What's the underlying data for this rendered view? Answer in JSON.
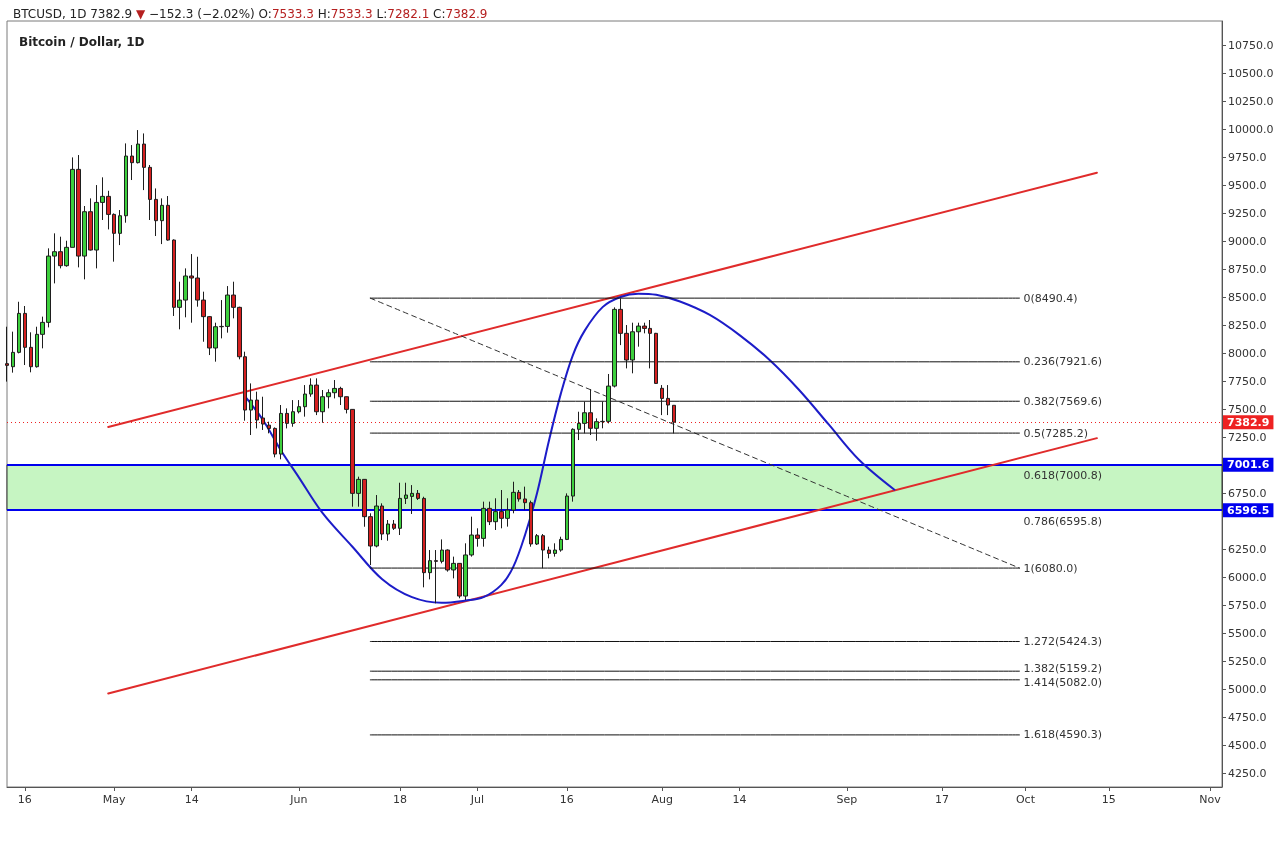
{
  "chart_data": {
    "type": "candlestick",
    "title": "BTCUSD, 1D 7382.9 ▼ −152.3 (−2.02%) O:7533.3 H:7533.3 L:7282.1 C:7382.9",
    "subtitle": "Bitcoin / Dollar, 1D",
    "x": [
      "--04-13",
      "--04-14",
      "--04-15",
      "--04-16",
      "--04-17",
      "--04-18",
      "--04-19",
      "--04-20",
      "--04-21",
      "--04-22",
      "--04-23",
      "--04-24",
      "--04-25",
      "--04-26",
      "--04-27",
      "--04-28",
      "--04-29",
      "--04-30",
      "--05-01",
      "--05-02",
      "--05-03",
      "--05-04",
      "--05-05",
      "--05-06",
      "--05-07",
      "--05-08",
      "--05-09",
      "--05-10",
      "--05-11",
      "--05-12",
      "--05-13",
      "--05-14",
      "--05-15",
      "--05-16",
      "--05-17",
      "--05-18",
      "--05-19",
      "--05-20",
      "--05-21",
      "--05-22",
      "--05-23",
      "--05-24",
      "--05-25",
      "--05-26",
      "--05-27",
      "--05-28",
      "--05-29",
      "--05-30",
      "--05-31",
      "--06-01",
      "--06-02",
      "--06-03",
      "--06-04",
      "--06-05",
      "--06-06",
      "--06-07",
      "--06-08",
      "--06-09",
      "--06-10",
      "--06-11",
      "--06-12",
      "--06-13",
      "--06-14",
      "--06-15",
      "--06-16",
      "--06-17",
      "--06-18",
      "--06-19",
      "--06-20",
      "--06-21",
      "--06-22",
      "--06-23",
      "--06-24",
      "--06-25",
      "--06-26",
      "--06-27",
      "--06-28",
      "--06-29",
      "--06-30",
      "--07-01",
      "--07-02",
      "--07-03",
      "--07-04",
      "--07-05",
      "--07-06",
      "--07-07",
      "--07-08",
      "--07-09",
      "--07-10",
      "--07-11",
      "--07-12",
      "--07-13",
      "--07-14",
      "--07-15",
      "--07-16",
      "--07-17",
      "--07-18",
      "--07-19",
      "--07-20",
      "--07-21",
      "--07-22",
      "--07-23",
      "--07-24",
      "--07-25",
      "--07-26",
      "--07-27",
      "--07-28",
      "--07-29",
      "--07-30",
      "--07-31",
      "--08-01",
      "--08-02",
      "--08-03"
    ],
    "ohlc": [
      [
        7905,
        8235,
        7745,
        7890
      ],
      [
        7878,
        8191,
        7825,
        8006
      ],
      [
        8006,
        8458,
        7997,
        8354
      ],
      [
        8354,
        8420,
        7893,
        8051
      ],
      [
        8051,
        8185,
        7828,
        7878
      ],
      [
        7878,
        8235,
        7870,
        8167
      ],
      [
        8167,
        8325,
        8042,
        8274
      ],
      [
        8274,
        8935,
        8229,
        8866
      ],
      [
        8866,
        9069,
        8622,
        8905
      ],
      [
        8905,
        9039,
        8756,
        8780
      ],
      [
        8780,
        9003,
        8771,
        8944
      ],
      [
        8944,
        9747,
        8944,
        9640
      ],
      [
        9640,
        9768,
        8765,
        8866
      ],
      [
        8866,
        9313,
        8658,
        9262
      ],
      [
        9262,
        9381,
        8915,
        8920
      ],
      [
        8920,
        9500,
        8756,
        9345
      ],
      [
        9345,
        9569,
        9188,
        9399
      ],
      [
        9399,
        9449,
        9104,
        9238
      ],
      [
        9238,
        9247,
        8816,
        9069
      ],
      [
        9069,
        9277,
        8964,
        9226
      ],
      [
        9226,
        9872,
        9164,
        9759
      ],
      [
        9759,
        9857,
        9545,
        9700
      ],
      [
        9700,
        9991,
        9693,
        9866
      ],
      [
        9866,
        9961,
        9455,
        9658
      ],
      [
        9658,
        9679,
        9188,
        9372
      ],
      [
        9372,
        9470,
        9045,
        9182
      ],
      [
        9182,
        9381,
        8973,
        9319
      ],
      [
        9319,
        9402,
        9003,
        9009
      ],
      [
        9009,
        9015,
        8331,
        8408
      ],
      [
        8408,
        8637,
        8212,
        8473
      ],
      [
        8473,
        8756,
        8319,
        8688
      ],
      [
        8688,
        8884,
        8271,
        8670
      ],
      [
        8670,
        8860,
        8414,
        8473
      ],
      [
        8473,
        8548,
        8101,
        8325
      ],
      [
        8325,
        8331,
        7982,
        8045
      ],
      [
        8045,
        8271,
        7923,
        8235
      ],
      [
        8235,
        8473,
        8131,
        8238
      ],
      [
        8238,
        8598,
        8182,
        8518
      ],
      [
        8518,
        8637,
        8310,
        8408
      ],
      [
        8408,
        8414,
        7944,
        7967
      ],
      [
        7967,
        8012,
        7396,
        7491
      ],
      [
        7491,
        7729,
        7268,
        7580
      ],
      [
        7580,
        7655,
        7327,
        7402
      ],
      [
        7420,
        7610,
        7313,
        7366
      ],
      [
        7356,
        7387,
        7283,
        7327
      ],
      [
        7327,
        7336,
        7069,
        7098
      ],
      [
        7098,
        7536,
        7051,
        7461
      ],
      [
        7461,
        7506,
        7327,
        7372
      ],
      [
        7372,
        7580,
        7342,
        7476
      ],
      [
        7476,
        7580,
        7461,
        7521
      ],
      [
        7521,
        7714,
        7432,
        7634
      ],
      [
        7634,
        7774,
        7610,
        7714
      ],
      [
        7714,
        7774,
        7446,
        7476
      ],
      [
        7476,
        7670,
        7378,
        7610
      ],
      [
        7610,
        7676,
        7506,
        7646
      ],
      [
        7646,
        7759,
        7595,
        7684
      ],
      [
        7684,
        7699,
        7536,
        7610
      ],
      [
        7610,
        7612,
        7461,
        7497
      ],
      [
        7497,
        7500,
        6628,
        6747
      ],
      [
        6747,
        6896,
        6628,
        6872
      ],
      [
        6872,
        6875,
        6449,
        6539
      ],
      [
        6539,
        6569,
        6107,
        6277
      ],
      [
        6277,
        6732,
        6265,
        6634
      ],
      [
        6634,
        6658,
        6330,
        6384
      ],
      [
        6384,
        6509,
        6324,
        6473
      ],
      [
        6473,
        6509,
        6420,
        6435
      ],
      [
        6435,
        6842,
        6375,
        6702
      ],
      [
        6702,
        6842,
        6652,
        6732
      ],
      [
        6720,
        6821,
        6563,
        6747
      ],
      [
        6747,
        6777,
        6688,
        6702
      ],
      [
        6702,
        6717,
        5908,
        6039
      ],
      [
        6039,
        6241,
        5979,
        6146
      ],
      [
        6146,
        6241,
        5765,
        6140
      ],
      [
        6140,
        6336,
        6122,
        6241
      ],
      [
        6241,
        6247,
        6048,
        6063
      ],
      [
        6063,
        6182,
        5988,
        6122
      ],
      [
        6122,
        6125,
        5810,
        5830
      ],
      [
        5830,
        6301,
        5795,
        6197
      ],
      [
        6197,
        6539,
        6182,
        6375
      ],
      [
        6375,
        6435,
        6271,
        6345
      ],
      [
        6345,
        6673,
        6271,
        6613
      ],
      [
        6613,
        6673,
        6464,
        6494
      ],
      [
        6494,
        6703,
        6420,
        6584
      ],
      [
        6584,
        6777,
        6435,
        6524
      ],
      [
        6524,
        6703,
        6450,
        6598
      ],
      [
        6598,
        6851,
        6569,
        6756
      ],
      [
        6756,
        6777,
        6673,
        6697
      ],
      [
        6697,
        6807,
        6598,
        6664
      ],
      [
        6664,
        6682,
        6271,
        6295
      ],
      [
        6295,
        6384,
        6286,
        6369
      ],
      [
        6369,
        6384,
        6078,
        6241
      ],
      [
        6241,
        6271,
        6167,
        6211
      ],
      [
        6211,
        6301,
        6182,
        6241
      ],
      [
        6241,
        6360,
        6226,
        6336
      ],
      [
        6336,
        6747,
        6330,
        6723
      ],
      [
        6723,
        7328,
        6673,
        7319
      ],
      [
        7319,
        7476,
        7223,
        7372
      ],
      [
        7372,
        7566,
        7283,
        7467
      ],
      [
        7467,
        7676,
        7268,
        7328
      ],
      [
        7328,
        7417,
        7217,
        7387
      ],
      [
        7387,
        7566,
        7328,
        7390
      ],
      [
        7390,
        7813,
        7372,
        7705
      ],
      [
        7705,
        8408,
        7693,
        8390
      ],
      [
        8390,
        8488,
        8071,
        8176
      ],
      [
        8176,
        8250,
        7863,
        7938
      ],
      [
        7938,
        8271,
        7819,
        8190
      ],
      [
        8190,
        8271,
        8057,
        8241
      ],
      [
        8241,
        8271,
        8176,
        8220
      ],
      [
        8220,
        8295,
        7863,
        8176
      ],
      [
        8176,
        8180,
        7725,
        7729
      ],
      [
        7685,
        7714,
        7446,
        7595
      ],
      [
        7595,
        7714,
        7446,
        7536
      ],
      [
        7533.3,
        7533.3,
        7282.1,
        7382.9
      ]
    ],
    "colors": [
      "#d42020",
      "#3dcf3d",
      "#3dcf3d",
      "#d42020",
      "#d42020",
      "#3dcf3d",
      "#3dcf3d",
      "#3dcf3d",
      "#3dcf3d",
      "#d42020",
      "#3dcf3d",
      "#3dcf3d",
      "#d42020",
      "#3dcf3d",
      "#d42020",
      "#3dcf3d",
      "#3dcf3d",
      "#d42020",
      "#d42020",
      "#3dcf3d",
      "#3dcf3d",
      "#d42020",
      "#3dcf3d",
      "#d42020",
      "#d42020",
      "#d42020",
      "#3dcf3d",
      "#d42020",
      "#d42020",
      "#3dcf3d",
      "#3dcf3d",
      "#d42020",
      "#d42020",
      "#d42020",
      "#d42020",
      "#3dcf3d",
      "#3dcf3d",
      "#3dcf3d",
      "#d42020",
      "#d42020",
      "#d42020",
      "#3dcf3d",
      "#d42020",
      "#d42020",
      "#d42020",
      "#d42020",
      "#3dcf3d",
      "#d42020",
      "#3dcf3d",
      "#3dcf3d",
      "#3dcf3d",
      "#3dcf3d",
      "#d42020",
      "#3dcf3d",
      "#3dcf3d",
      "#3dcf3d",
      "#d42020",
      "#d42020",
      "#d42020",
      "#3dcf3d",
      "#d42020",
      "#d42020",
      "#3dcf3d",
      "#d42020",
      "#3dcf3d",
      "#d42020",
      "#3dcf3d",
      "#3dcf3d",
      "#3dcf3d",
      "#d42020",
      "#d42020",
      "#3dcf3d",
      "#d42020",
      "#3dcf3d",
      "#d42020",
      "#3dcf3d",
      "#d42020",
      "#3dcf3d",
      "#3dcf3d",
      "#d42020",
      "#3dcf3d",
      "#d42020",
      "#3dcf3d",
      "#d42020",
      "#3dcf3d",
      "#3dcf3d",
      "#d42020",
      "#d42020",
      "#d42020",
      "#3dcf3d",
      "#d42020",
      "#d42020",
      "#3dcf3d",
      "#3dcf3d",
      "#3dcf3d",
      "#3dcf3d",
      "#3dcf3d",
      "#3dcf3d",
      "#d42020",
      "#3dcf3d",
      "#3dcf3d",
      "#3dcf3d",
      "#3dcf3d",
      "#d42020",
      "#d42020",
      "#3dcf3d",
      "#3dcf3d",
      "#d42020",
      "#d42020",
      "#d42020",
      "#d42020",
      "#d42020",
      "#d42020"
    ],
    "series": [
      {
        "type": "line",
        "x": [
          "--04-30",
          "--10-13"
        ],
        "values": [
          7340,
          9610
        ],
        "color": "#e02b2b"
      },
      {
        "type": "line",
        "x": [
          "--04-30",
          "--10-13"
        ],
        "values": [
          4960,
          7240
        ],
        "color": "#e02b2b"
      },
      {
        "type": "line",
        "x": [
          "--05-23",
          "--05-26",
          "--05-29",
          "--06-01",
          "--06-05",
          "--06-10",
          "--06-15",
          "--06-20",
          "--06-25",
          "--06-29",
          "--07-02",
          "--07-05",
          "--07-07",
          "--07-09",
          "--07-11",
          "--07-13",
          "--07-15",
          "--07-17",
          "--07-19",
          "--07-22",
          "--07-25",
          "--07-28",
          "--07-31",
          "--08-04",
          "--08-09",
          "--08-14",
          "--08-19",
          "--08-24",
          "--08-29",
          "--09-03",
          "--09-09"
        ],
        "values": [
          7610,
          7400,
          7130,
          6890,
          6570,
          6270,
          5980,
          5820,
          5770,
          5790,
          5820,
          5930,
          6090,
          6380,
          6750,
          7220,
          7640,
          7980,
          8200,
          8410,
          8500,
          8530,
          8520,
          8460,
          8340,
          8160,
          7940,
          7670,
          7360,
          7050,
          6780
        ],
        "color": "#1c1cc8"
      },
      {
        "type": "line",
        "x": [
          "--06-13",
          "--09-30"
        ],
        "values": [
          8490,
          6080
        ],
        "color": "#333333",
        "line_style": "dashed"
      },
      {
        "type": "line",
        "name": "0(8490.4)",
        "x": [
          "--06-13",
          "--09-30"
        ],
        "values": [
          8490.4,
          8490.4
        ],
        "color": "#111111"
      },
      {
        "type": "line",
        "name": "0.236(7921.6)",
        "x": [
          "--06-13",
          "--09-30"
        ],
        "values": [
          7921.6,
          7921.6
        ],
        "color": "#111111"
      },
      {
        "type": "line",
        "name": "0.382(7569.6)",
        "x": [
          "--06-13",
          "--09-30"
        ],
        "values": [
          7569.6,
          7569.6
        ],
        "color": "#111111"
      },
      {
        "type": "line",
        "name": "0.5(7285.2)",
        "x": [
          "--06-13",
          "--09-30"
        ],
        "values": [
          7285.2,
          7285.2
        ],
        "color": "#111111"
      },
      {
        "type": "line",
        "name": "1(6080.0)",
        "x": [
          "--06-13",
          "--09-30"
        ],
        "values": [
          6080.0,
          6080.0
        ],
        "color": "#111111"
      },
      {
        "type": "line",
        "name": "1.272(5424.3)",
        "x": [
          "--06-13",
          "--09-30"
        ],
        "values": [
          5424.3,
          5424.3
        ],
        "color": "#111111"
      },
      {
        "type": "line",
        "name": "1.382(5159.2)",
        "x": [
          "--06-13",
          "--09-30"
        ],
        "values": [
          5159.2,
          5159.2
        ],
        "color": "#111111"
      },
      {
        "type": "line",
        "name": "1.414(5082.0)",
        "x": [
          "--06-13",
          "--09-30"
        ],
        "values": [
          5082.0,
          5082.0
        ],
        "color": "#111111"
      },
      {
        "type": "line",
        "name": "1.618(4590.3)",
        "x": [
          "--06-13",
          "--09-30"
        ],
        "values": [
          4590.3,
          4590.3
        ],
        "color": "#111111"
      }
    ],
    "annotations": [
      {
        "text": "0.618(7000.8)",
        "x": "--09-30",
        "y": 7000.8
      },
      {
        "text": "0.786(6595.8)",
        "x": "--09-30",
        "y": 6595.8
      }
    ],
    "xlim": [
      "--04-13",
      "--11-03"
    ],
    "xticks": [
      {
        "value": "--04-16",
        "label": "16"
      },
      {
        "value": "--05-01",
        "label": "May"
      },
      {
        "value": "--05-14",
        "label": "14"
      },
      {
        "value": "--06-01",
        "label": "Jun"
      },
      {
        "value": "--06-18",
        "label": "18"
      },
      {
        "value": "--07-01",
        "label": "Jul"
      },
      {
        "value": "--07-16",
        "label": "16"
      },
      {
        "value": "--08-01",
        "label": "Aug"
      },
      {
        "value": "--08-14",
        "label": "14"
      },
      {
        "value": "--09-01",
        "label": "Sep"
      },
      {
        "value": "--09-17",
        "label": "17"
      },
      {
        "value": "--10-01",
        "label": "Oct"
      },
      {
        "value": "--10-15",
        "label": "15"
      },
      {
        "value": "--11-01",
        "label": "Nov"
      }
    ],
    "ylim": [
      4125,
      10965
    ],
    "yticks": [
      {
        "value": 4250,
        "label": "4250.0"
      },
      {
        "value": 4500,
        "label": "4500.0"
      },
      {
        "value": 4750,
        "label": "4750.0"
      },
      {
        "value": 5000,
        "label": "5000.0"
      },
      {
        "value": 5250,
        "label": "5250.0"
      },
      {
        "value": 5500,
        "label": "5500.0"
      },
      {
        "value": 5750,
        "label": "5750.0"
      },
      {
        "value": 6000,
        "label": "6000.0"
      },
      {
        "value": 6250,
        "label": "6250.0"
      },
      {
        "value": 6750,
        "label": "6750.0"
      },
      {
        "value": 7250,
        "label": "7250.0"
      },
      {
        "value": 7500,
        "label": "7500.0"
      },
      {
        "value": 7750,
        "label": "7750.0"
      },
      {
        "value": 8000,
        "label": "8000.0"
      },
      {
        "value": 8250,
        "label": "8250.0"
      },
      {
        "value": 8500,
        "label": "8500.0"
      },
      {
        "value": 8750,
        "label": "8750.0"
      },
      {
        "value": 9000,
        "label": "9000.0"
      },
      {
        "value": 9250,
        "label": "9250.0"
      },
      {
        "value": 9500,
        "label": "9500.0"
      },
      {
        "value": 9750,
        "label": "9750.0"
      },
      {
        "value": 10000,
        "label": "10000.0"
      },
      {
        "value": 10250,
        "label": "10250.0"
      },
      {
        "value": 10500,
        "label": "10500.0"
      },
      {
        "value": 10750,
        "label": "10750.0"
      }
    ],
    "ref_lines": [
      {
        "axis": "y",
        "value": 7382.9,
        "label": "7382.9",
        "color": "#ee2222",
        "line_style": "dotted"
      },
      {
        "axis": "y",
        "value": 7001.6,
        "label": "7001.6",
        "color": "#0000ee"
      },
      {
        "axis": "y",
        "value": 6596.5,
        "label": "6596.5",
        "color": "#0000ee"
      }
    ],
    "bands": [
      {
        "axis": "y",
        "from": 6596.5,
        "to": 7001.6,
        "color": "#c6f5c2"
      }
    ]
  }
}
